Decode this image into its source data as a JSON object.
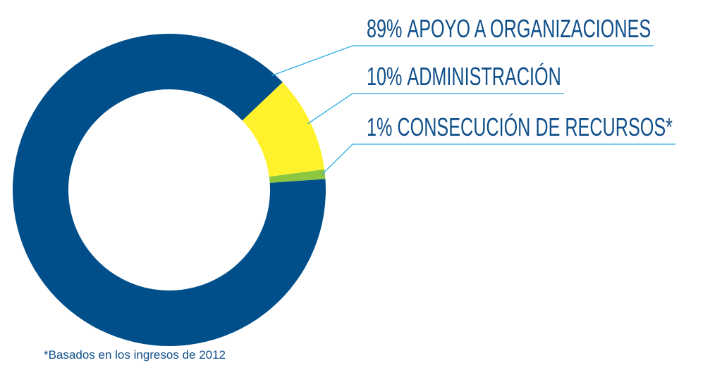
{
  "chart_data": {
    "type": "donut",
    "categories": [
      "APOYO A ORGANIZACIONES",
      "ADMINISTRACIÓN",
      "CONSECUCIÓN DE RECURSOS*"
    ],
    "values": [
      89,
      10,
      1
    ],
    "value_labels": [
      "89%",
      "10%",
      "1%"
    ],
    "colors": [
      "#004f8b",
      "#fff22d",
      "#8dc63f"
    ],
    "leader_color": "#29abe2",
    "note": "*Basados en los ingresos de 2012"
  }
}
